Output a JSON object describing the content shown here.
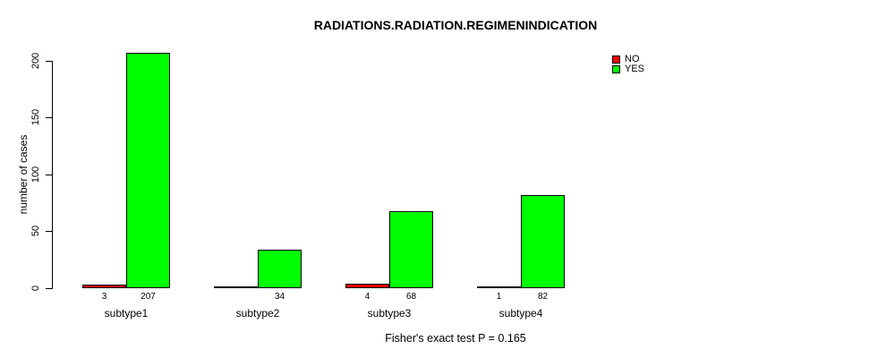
{
  "chart_data": {
    "type": "bar",
    "title": "RADIATIONS.RADIATION.REGIMENINDICATION",
    "xlabel": "",
    "ylabel": "number of cases",
    "annotation": "Fisher's exact test P = 0.165",
    "categories": [
      "subtype1",
      "subtype2",
      "subtype3",
      "subtype4"
    ],
    "series": [
      {
        "name": "NO",
        "color": "#ff0000",
        "values": [
          3,
          0,
          4,
          1
        ],
        "labels": [
          "3",
          "",
          "4",
          "1"
        ]
      },
      {
        "name": "YES",
        "color": "#00ff00",
        "values": [
          207,
          34,
          68,
          82
        ],
        "labels": [
          "207",
          "34",
          "68",
          "82"
        ]
      }
    ],
    "yticks": [
      0,
      50,
      100,
      150,
      200
    ],
    "ylim": [
      0,
      207
    ],
    "grid": false,
    "legend_position": "top-right",
    "background": "#ffffff",
    "text_color": "#000000"
  }
}
